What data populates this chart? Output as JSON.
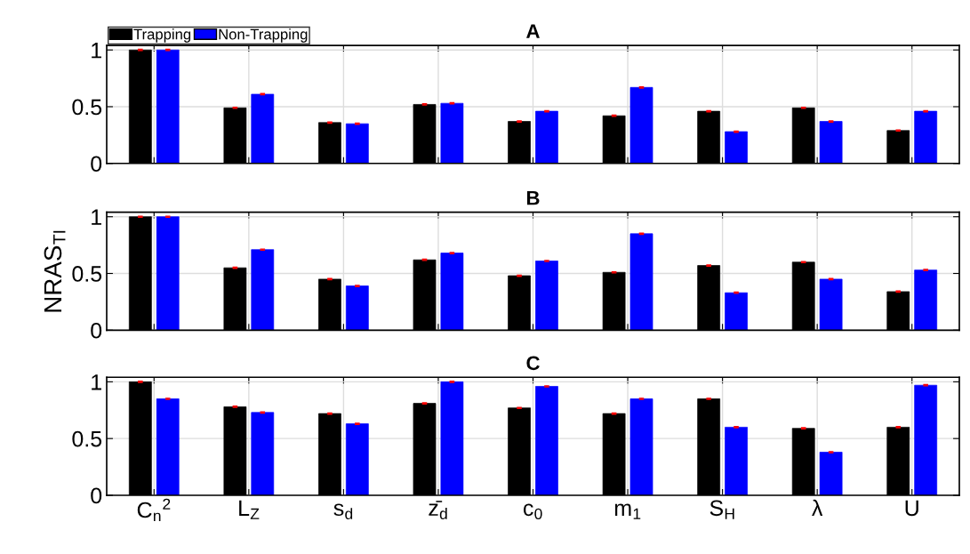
{
  "chart_data": [
    {
      "type": "bar",
      "title": "A",
      "ylim": [
        0,
        1.04
      ],
      "yticks": [
        0,
        0.5,
        1
      ],
      "grid": true,
      "legend": "top left",
      "tick_labels": "y",
      "series": [
        {
          "name": "Trapping",
          "color": "#000000",
          "values": [
            1,
            0.49,
            0.36,
            0.52,
            0.37,
            0.42,
            0.46,
            0.49,
            0.29
          ],
          "errors": [
            0.005,
            0.005,
            0.005,
            0.005,
            0.005,
            0.005,
            0.005,
            0.005,
            0.005
          ]
        },
        {
          "name": "Non-Trapping",
          "color": "#0000ff",
          "values": [
            1,
            0.61,
            0.35,
            0.53,
            0.46,
            0.67,
            0.28,
            0.37,
            0.46
          ],
          "errors": [
            0.005,
            0.005,
            0.005,
            0.005,
            0.005,
            0.005,
            0.005,
            0.005,
            0.005
          ]
        }
      ]
    },
    {
      "type": "bar",
      "title": "B",
      "ylabel": "NRAS$_{TI}$",
      "ylim": [
        0,
        1.04
      ],
      "yticks": [
        0,
        0.5,
        1
      ],
      "grid": true,
      "tick_labels": "y",
      "series": [
        {
          "color": "#000000",
          "values": [
            1,
            0.55,
            0.45,
            0.62,
            0.48,
            0.51,
            0.57,
            0.6,
            0.34
          ],
          "errors": [
            0.005,
            0.005,
            0.005,
            0.005,
            0.005,
            0.005,
            0.005,
            0.005,
            0.005
          ]
        },
        {
          "color": "#0000ff",
          "values": [
            1,
            0.71,
            0.39,
            0.68,
            0.61,
            0.85,
            0.33,
            0.45,
            0.53
          ],
          "errors": [
            0.005,
            0.005,
            0.005,
            0.005,
            0.005,
            0.005,
            0.005,
            0.005,
            0.005
          ]
        }
      ]
    },
    {
      "type": "bar",
      "title": "C",
      "categories": [
        "C$_{n}$$^{2}$",
        "L$_{Z}$",
        "s$_{d}$",
        "z̄$_{d}$",
        "c$_{0}$",
        "m$_{1}$",
        "S$_{H}$",
        "λ",
        "U"
      ],
      "ylim": [
        0,
        1.04
      ],
      "yticks": [
        0,
        0.5,
        1
      ],
      "grid": true,
      "series": [
        {
          "color": "#000000",
          "values": [
            1,
            0.78,
            0.72,
            0.81,
            0.77,
            0.72,
            0.85,
            0.59,
            0.6
          ],
          "errors": [
            0.005,
            0.005,
            0.005,
            0.005,
            0.005,
            0.005,
            0.005,
            0.005,
            0.005
          ]
        },
        {
          "color": "#0000ff",
          "values": [
            0.85,
            0.73,
            0.63,
            1,
            0.96,
            0.85,
            0.6,
            0.38,
            0.97
          ],
          "errors": [
            0.005,
            0.005,
            0.005,
            0.005,
            0.005,
            0.005,
            0.005,
            0.005,
            0.005
          ]
        }
      ]
    }
  ]
}
